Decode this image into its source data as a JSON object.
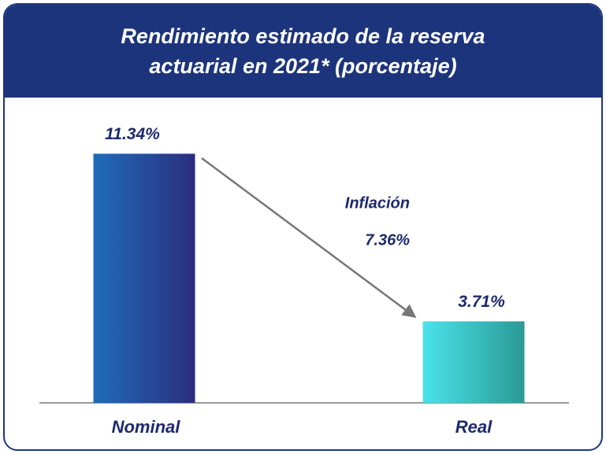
{
  "chart_data": {
    "type": "bar",
    "title": "Rendimiento estimado de la reserva actuarial en 2021* (porcentaje)",
    "categories": [
      "Nominal",
      "Real"
    ],
    "values": [
      11.34,
      3.71
    ],
    "value_labels": [
      "11.34%",
      "3.71%"
    ],
    "colors": [
      [
        "#1f6cb9",
        "#2b2d7e"
      ],
      [
        "#4ae3ea",
        "#2a9a96"
      ]
    ],
    "ylim": [
      0,
      12.5
    ],
    "annotations": [
      "Inflación",
      "7.36%"
    ]
  }
}
